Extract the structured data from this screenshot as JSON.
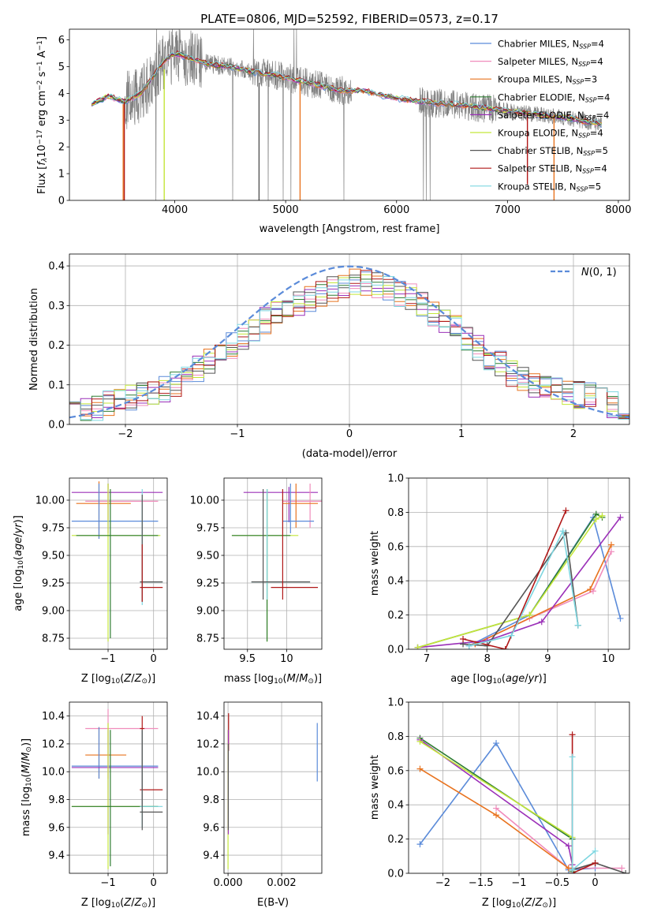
{
  "figure": {
    "title": "PLATE=0806, MJD=52592, FIBERID=0573, z=0.17"
  },
  "colors": {
    "Chabrier MILES": "#5b8bd9",
    "Salpeter MILES": "#f08cbc",
    "Kroupa MILES": "#e8731f",
    "Chabrier ELODIE": "#2e7d32",
    "Salpeter ELODIE": "#9b30b8",
    "Kroupa ELODIE": "#c4e63a",
    "Chabrier STELIB": "#555555",
    "Salpeter STELIB": "#b01818",
    "Kroupa STELIB": "#7dd6e0",
    "data": "#808080",
    "normal": "#5b8bd9",
    "grid": "#b0b0b0"
  },
  "chart_data": [
    {
      "type": "line",
      "title": "PLATE=0806, MJD=52592, FIBERID=0573, z=0.17",
      "xlabel": "wavelength [Angstrom, rest frame]",
      "ylabel": "Flux [f_λ10^-17 erg cm^-2 s^-1 A^-1]",
      "xlim": [
        3050,
        8100
      ],
      "ylim": [
        0,
        6.4
      ],
      "xticks": [
        4000,
        5000,
        6000,
        7000,
        8000
      ],
      "yticks": [
        0,
        1,
        2,
        3,
        4,
        5,
        6
      ],
      "grid": false,
      "legend_position": "top-right",
      "legend": [
        "Chabrier MILES, N_SSP=4",
        "Salpeter MILES, N_SSP=4",
        "Kroupa MILES, N_SSP=3",
        "Chabrier ELODIE, N_SSP=4",
        "Salpeter ELODIE, N_SSP=4",
        "Kroupa ELODIE, N_SSP=4",
        "Chabrier STELIB, N_SSP=5",
        "Salpeter STELIB, N_SSP=4",
        "Kroupa STELIB, N_SSP=5"
      ],
      "model_continuum": {
        "x": [
          3250,
          3400,
          3550,
          3700,
          3800,
          3900,
          4000,
          4150,
          4300,
          4500,
          4700,
          4900,
          5100,
          5300,
          5500,
          5700,
          5900,
          6100,
          6300,
          6500,
          6700,
          6900,
          7100,
          7300,
          7500,
          7700,
          7850
        ],
        "y": [
          3.6,
          3.9,
          3.7,
          4.0,
          4.6,
          5.2,
          5.5,
          5.3,
          5.1,
          5.0,
          4.8,
          4.7,
          4.5,
          4.3,
          4.1,
          4.1,
          3.9,
          3.75,
          3.65,
          3.6,
          3.5,
          3.4,
          3.3,
          3.2,
          3.1,
          2.95,
          2.85
        ]
      },
      "model_spikes": [
        {
          "series": "Kroupa MILES",
          "x": 3535,
          "y0": 0,
          "y1": 3.6
        },
        {
          "series": "Kroupa MILES",
          "x": 5130,
          "y0": 0,
          "y1": 4.4
        },
        {
          "series": "Kroupa MILES",
          "x": 7420,
          "y0": 0,
          "y1": 3.2
        },
        {
          "series": "Salpeter STELIB",
          "x": 3545,
          "y0": 0,
          "y1": 3.7
        },
        {
          "series": "Salpeter STELIB",
          "x": 7180,
          "y0": 0.6,
          "y1": 3.3
        },
        {
          "series": "Kroupa ELODIE",
          "x": 3905,
          "y0": 0,
          "y1": 4.9
        },
        {
          "series": "Chabrier STELIB",
          "x": 4760,
          "y0": 0,
          "y1": 4.4
        }
      ]
    },
    {
      "type": "histogram",
      "xlabel": "(data-model)/error",
      "ylabel": "Normed distribution",
      "xlim": [
        -2.5,
        2.5
      ],
      "ylim": [
        0,
        0.43
      ],
      "xticks": [
        -2,
        -1,
        0,
        1,
        2
      ],
      "yticks": [
        0.0,
        0.1,
        0.2,
        0.3,
        0.4
      ],
      "grid": true,
      "legend_position": "top-right",
      "legend": [
        "N(0,1)"
      ],
      "bin_width": 0.1,
      "bins_start": -2.5,
      "mean_profile": [
        0.035,
        0.04,
        0.045,
        0.05,
        0.06,
        0.07,
        0.08,
        0.085,
        0.09,
        0.1,
        0.12,
        0.14,
        0.16,
        0.18,
        0.2,
        0.22,
        0.24,
        0.26,
        0.28,
        0.3,
        0.31,
        0.32,
        0.33,
        0.34,
        0.35,
        0.36,
        0.355,
        0.35,
        0.34,
        0.33,
        0.32,
        0.3,
        0.28,
        0.26,
        0.24,
        0.21,
        0.19,
        0.17,
        0.15,
        0.13,
        0.11,
        0.1,
        0.09,
        0.085,
        0.08,
        0.075,
        0.07,
        0.06,
        0.05,
        0.04
      ]
    },
    {
      "type": "errorbar",
      "xlabel": "Z [log10(Z/Z☉)]",
      "ylabel": "age [log10(age/yr)]",
      "xlim": [
        -1.85,
        0.3
      ],
      "ylim": [
        8.65,
        10.2
      ],
      "xticks": [
        -1,
        0
      ],
      "yticks": [
        8.75,
        9.0,
        9.25,
        9.5,
        9.75,
        10.0
      ],
      "grid": true,
      "points": [
        {
          "series": "Salpeter ELODIE",
          "x": -1.0,
          "y": 10.07,
          "x_lo": -1.8,
          "x_hi": 0.2,
          "y_lo": 9.7,
          "y_hi": 10.15
        },
        {
          "series": "Salpeter MILES",
          "x": -1.0,
          "y": 9.99,
          "x_lo": -1.5,
          "x_hi": 0.1,
          "y_lo": 9.8,
          "y_hi": 10.15
        },
        {
          "series": "Kroupa MILES",
          "x": -1.2,
          "y": 9.97,
          "x_lo": -1.7,
          "x_hi": -0.5,
          "y_lo": 9.65,
          "y_hi": 10.17
        },
        {
          "series": "Chabrier MILES",
          "x": -1.2,
          "y": 9.81,
          "x_lo": -1.8,
          "x_hi": 0.1,
          "y_lo": 9.65,
          "y_hi": 10.15
        },
        {
          "series": "Kroupa ELODIE",
          "x": -1.0,
          "y": 9.68,
          "x_lo": -1.8,
          "x_hi": 0.15,
          "y_lo": 8.72,
          "y_hi": 10.15
        },
        {
          "series": "Chabrier ELODIE",
          "x": -0.95,
          "y": 9.68,
          "x_lo": -1.7,
          "x_hi": 0.1,
          "y_lo": 8.75,
          "y_hi": 10.1
        },
        {
          "series": "Kroupa STELIB",
          "x": -0.25,
          "y": 9.26,
          "x_lo": -0.3,
          "x_hi": 0.2,
          "y_lo": 9.05,
          "y_hi": 10.1
        },
        {
          "series": "Chabrier STELIB",
          "x": -0.25,
          "y": 9.26,
          "x_lo": -0.3,
          "x_hi": 0.2,
          "y_lo": 9.08,
          "y_hi": 10.05
        },
        {
          "series": "Salpeter STELIB",
          "x": -0.25,
          "y": 9.21,
          "x_lo": -0.3,
          "x_hi": 0.2,
          "y_lo": 9.08,
          "y_hi": 9.6
        }
      ]
    },
    {
      "type": "errorbar",
      "xlabel": "mass [log10(M/M☉)]",
      "ylabel": "",
      "xlim": [
        9.2,
        10.45
      ],
      "ylim": [
        8.65,
        10.2
      ],
      "xticks": [
        9.5,
        10.0
      ],
      "yticks": [
        8.75,
        9.0,
        9.25,
        9.5,
        9.75,
        10.0
      ],
      "grid": true,
      "points": [
        {
          "series": "Salpeter ELODIE",
          "x": 10.03,
          "y": 10.07,
          "x_lo": 9.45,
          "x_hi": 10.4,
          "y_lo": 9.8,
          "y_hi": 10.12
        },
        {
          "series": "Salpeter MILES",
          "x": 10.3,
          "y": 9.99,
          "x_lo": 9.95,
          "x_hi": 10.45,
          "y_lo": 9.75,
          "y_hi": 10.15
        },
        {
          "series": "Kroupa MILES",
          "x": 10.12,
          "y": 9.97,
          "x_lo": 9.95,
          "x_hi": 10.4,
          "y_lo": 9.75,
          "y_hi": 10.15
        },
        {
          "series": "Chabrier MILES",
          "x": 10.05,
          "y": 9.81,
          "x_lo": 9.95,
          "x_hi": 10.35,
          "y_lo": 9.7,
          "y_hi": 10.15
        },
        {
          "series": "Kroupa ELODIE",
          "x": 9.75,
          "y": 9.68,
          "x_lo": 9.3,
          "x_hi": 10.15,
          "y_lo": 8.72,
          "y_hi": 10.1
        },
        {
          "series": "Chabrier ELODIE",
          "x": 9.75,
          "y": 9.68,
          "x_lo": 9.3,
          "x_hi": 10.05,
          "y_lo": 8.72,
          "y_hi": 10.1
        },
        {
          "series": "Kroupa STELIB",
          "x": 9.75,
          "y": 9.26,
          "x_lo": 9.55,
          "x_hi": 10.3,
          "y_lo": 9.1,
          "y_hi": 10.1
        },
        {
          "series": "Chabrier STELIB",
          "x": 9.7,
          "y": 9.26,
          "x_lo": 9.55,
          "x_hi": 10.3,
          "y_lo": 9.1,
          "y_hi": 10.1
        },
        {
          "series": "Salpeter STELIB",
          "x": 9.95,
          "y": 9.21,
          "x_lo": 9.8,
          "x_hi": 10.4,
          "y_lo": 9.1,
          "y_hi": 10.1
        }
      ]
    },
    {
      "type": "line",
      "xlabel": "age [log10(age/yr)]",
      "ylabel": "mass weight",
      "xlim": [
        6.7,
        10.35
      ],
      "ylim": [
        0,
        1.0
      ],
      "xticks": [
        7,
        8,
        9,
        10
      ],
      "yticks": [
        0.0,
        0.2,
        0.4,
        0.6,
        0.8,
        1.0
      ],
      "grid": true,
      "series": [
        {
          "name": "Chabrier MILES",
          "x": [
            7.7,
            8.7,
            9.75,
            10.2
          ],
          "y": [
            0.02,
            0.2,
            0.77,
            0.18
          ]
        },
        {
          "name": "Salpeter MILES",
          "x": [
            7.8,
            8.7,
            9.75,
            10.05
          ],
          "y": [
            0.03,
            0.18,
            0.34,
            0.57
          ]
        },
        {
          "name": "Kroupa MILES",
          "x": [
            7.8,
            9.7,
            10.05
          ],
          "y": [
            0.03,
            0.35,
            0.61
          ]
        },
        {
          "name": "Chabrier ELODIE",
          "x": [
            6.85,
            8.7,
            9.8,
            9.9
          ],
          "y": [
            0.01,
            0.2,
            0.79,
            0.77
          ]
        },
        {
          "name": "Salpeter ELODIE",
          "x": [
            6.85,
            8.0,
            8.9,
            10.2
          ],
          "y": [
            0.01,
            0.05,
            0.16,
            0.77
          ]
        },
        {
          "name": "Kroupa ELODIE",
          "x": [
            6.85,
            8.7,
            9.8,
            9.9
          ],
          "y": [
            0.01,
            0.2,
            0.76,
            0.78
          ]
        },
        {
          "name": "Chabrier STELIB",
          "x": [
            7.6,
            8.0,
            9.3,
            9.5
          ],
          "y": [
            0.03,
            0.02,
            0.68,
            0.14
          ]
        },
        {
          "name": "Salpeter STELIB",
          "x": [
            7.6,
            8.3,
            9.3
          ],
          "y": [
            0.06,
            0.0,
            0.81
          ]
        },
        {
          "name": "Kroupa STELIB",
          "x": [
            7.7,
            8.4,
            9.25,
            9.5
          ],
          "y": [
            0.02,
            0.08,
            0.69,
            0.14
          ]
        }
      ]
    },
    {
      "type": "errorbar",
      "xlabel": "Z [log10(Z/Z☉)]",
      "ylabel": "mass [log10(M/M☉)]",
      "xlim": [
        -1.85,
        0.3
      ],
      "ylim": [
        9.27,
        10.5
      ],
      "xticks": [
        -1,
        0
      ],
      "yticks": [
        9.4,
        9.6,
        9.8,
        10.0,
        10.2,
        10.4
      ],
      "grid": true,
      "points": [
        {
          "series": "Salpeter MILES",
          "x": -1.0,
          "y": 10.31,
          "x_lo": -1.5,
          "x_hi": 0.1,
          "y_lo": 9.95,
          "y_hi": 10.45
        },
        {
          "series": "Salpeter STELIB",
          "x": -0.25,
          "y": 10.31,
          "x_lo": -0.3,
          "x_hi": -0.2,
          "y_lo": 9.75,
          "y_hi": 10.4
        },
        {
          "series": "Kroupa MILES",
          "x": -1.2,
          "y": 10.12,
          "x_lo": -1.5,
          "x_hi": -0.6,
          "y_lo": 9.95,
          "y_hi": 10.32
        },
        {
          "series": "Chabrier MILES",
          "x": -1.2,
          "y": 10.04,
          "x_lo": -1.8,
          "x_hi": 0.1,
          "y_lo": 9.95,
          "y_hi": 10.32
        },
        {
          "series": "Salpeter ELODIE",
          "x": -1.0,
          "y": 10.03,
          "x_lo": -1.8,
          "x_hi": 0.1,
          "y_lo": 9.55,
          "y_hi": 10.3
        },
        {
          "series": "Salpeter STELIB",
          "x": -0.25,
          "y": 9.87,
          "x_lo": -0.3,
          "x_hi": 0.2,
          "y_lo": 9.8,
          "y_hi": 10.3
        },
        {
          "series": "Kroupa ELODIE",
          "x": -1.0,
          "y": 9.75,
          "x_lo": -1.8,
          "x_hi": 0.1,
          "y_lo": 9.3,
          "y_hi": 10.35
        },
        {
          "series": "Chabrier ELODIE",
          "x": -0.95,
          "y": 9.75,
          "x_lo": -1.8,
          "x_hi": 0.1,
          "y_lo": 9.32,
          "y_hi": 10.3
        },
        {
          "series": "Kroupa STELIB",
          "x": -0.25,
          "y": 9.75,
          "x_lo": -0.3,
          "x_hi": 0.2,
          "y_lo": 9.6,
          "y_hi": 10.3
        },
        {
          "series": "Chabrier STELIB",
          "x": -0.25,
          "y": 9.71,
          "x_lo": -0.3,
          "x_hi": 0.2,
          "y_lo": 9.58,
          "y_hi": 10.3
        }
      ]
    },
    {
      "type": "errorbar",
      "xlabel": "E(B-V)",
      "ylabel": "",
      "xlim": [
        -0.00015,
        0.0035
      ],
      "ylim": [
        9.27,
        10.5
      ],
      "xticks": [
        0.0,
        0.002
      ],
      "xtick_labels": [
        "0.000",
        "0.002"
      ],
      "yticks": [
        9.4,
        9.6,
        9.8,
        10.0,
        10.2,
        10.4
      ],
      "grid": true,
      "points": [
        {
          "series": "Chabrier MILES",
          "x": 0.00333,
          "y": 10.14,
          "x_lo": 0.00333,
          "x_hi": 0.00333,
          "y_lo": 9.93,
          "y_hi": 10.35
        },
        {
          "series": "Salpeter STELIB",
          "x": 2e-05,
          "y": 10.3,
          "x_lo": 2e-05,
          "x_hi": 2e-05,
          "y_lo": 10.15,
          "y_hi": 10.42
        },
        {
          "series": "Kroupa ELODIE",
          "x": 0.0,
          "y": 9.6,
          "x_lo": 0.0,
          "x_hi": 0.0,
          "y_lo": 9.3,
          "y_hi": 10.3
        },
        {
          "series": "Salpeter ELODIE",
          "x": 1e-05,
          "y": 9.9,
          "x_lo": 1e-05,
          "x_hi": 1e-05,
          "y_lo": 9.55,
          "y_hi": 10.3
        },
        {
          "series": "Chabrier STELIB",
          "x": 1e-05,
          "y": 9.65,
          "x_lo": 1e-05,
          "x_hi": 1e-05,
          "y_lo": 9.58,
          "y_hi": 10.2
        }
      ]
    },
    {
      "type": "line",
      "xlabel": "Z [log10(Z/Z☉)]",
      "ylabel": "mass weight",
      "xlim": [
        -2.45,
        0.45
      ],
      "ylim": [
        0,
        1.0
      ],
      "xticks": [
        -2.0,
        -1.5,
        -1.0,
        -0.5,
        0.0
      ],
      "yticks": [
        0.0,
        0.2,
        0.4,
        0.6,
        0.8,
        1.0
      ],
      "grid": true,
      "series": [
        {
          "name": "Chabrier MILES",
          "x": [
            -2.3,
            -1.3,
            -0.35,
            0.0
          ],
          "y": [
            0.17,
            0.76,
            0.02,
            0.03
          ]
        },
        {
          "name": "Salpeter MILES",
          "x": [
            -1.3,
            -0.35,
            0.35
          ],
          "y": [
            0.38,
            0.03,
            0.03
          ]
        },
        {
          "name": "Kroupa MILES",
          "x": [
            -2.3,
            -1.3,
            -0.35
          ],
          "y": [
            0.61,
            0.34,
            0.03
          ]
        },
        {
          "name": "Chabrier ELODIE",
          "x": [
            -2.3,
            -0.3,
            -0.3
          ],
          "y": [
            0.79,
            0.2,
            0.01
          ]
        },
        {
          "name": "Salpeter ELODIE",
          "x": [
            -2.3,
            -0.35,
            -0.3
          ],
          "y": [
            0.78,
            0.16,
            0.05
          ]
        },
        {
          "name": "Kroupa ELODIE",
          "x": [
            -2.3,
            -0.3,
            -0.3
          ],
          "y": [
            0.77,
            0.21,
            0.02
          ]
        },
        {
          "name": "Chabrier STELIB",
          "x": [
            -0.3,
            0.0,
            0.4
          ],
          "y": [
            0.02,
            0.06,
            0.0
          ]
        },
        {
          "name": "Salpeter STELIB",
          "x": [
            -0.3,
            -0.3,
            0.0
          ],
          "y": [
            0.81,
            0.0,
            0.06
          ]
        },
        {
          "name": "Kroupa STELIB",
          "x": [
            -0.3,
            -0.3,
            0.0
          ],
          "y": [
            0.68,
            0.02,
            0.13
          ]
        }
      ]
    }
  ]
}
